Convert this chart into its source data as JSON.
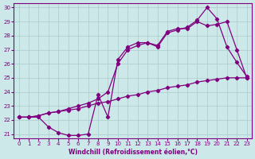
{
  "xlabel": "Windchill (Refroidissement éolien,°C)",
  "bg_color": "#cce8e8",
  "line_color": "#800080",
  "grid_color": "#aacccc",
  "xlim": [
    -0.5,
    23.5
  ],
  "ylim": [
    20.7,
    30.3
  ],
  "xticks": [
    0,
    1,
    2,
    3,
    4,
    5,
    6,
    7,
    8,
    9,
    10,
    11,
    12,
    13,
    14,
    15,
    16,
    17,
    18,
    19,
    20,
    21,
    22,
    23
  ],
  "yticks": [
    21,
    22,
    23,
    24,
    25,
    26,
    27,
    28,
    29,
    30
  ],
  "line1_x": [
    0,
    1,
    2,
    3,
    4,
    5,
    6,
    7,
    8,
    9,
    10,
    11,
    12,
    13,
    14,
    15,
    16,
    17,
    18,
    19,
    20,
    21,
    22,
    23
  ],
  "line1_y": [
    22.2,
    22.2,
    22.3,
    22.5,
    22.6,
    22.7,
    22.8,
    23.0,
    23.2,
    23.3,
    23.5,
    23.7,
    23.8,
    24.0,
    24.1,
    24.3,
    24.4,
    24.5,
    24.7,
    24.8,
    24.9,
    25.0,
    25.0,
    25.0
  ],
  "line2_x": [
    0,
    1,
    2,
    3,
    4,
    5,
    6,
    7,
    8,
    9,
    10,
    11,
    12,
    13,
    14,
    15,
    16,
    17,
    18,
    19,
    20,
    21,
    22,
    23
  ],
  "line2_y": [
    22.2,
    22.2,
    22.2,
    21.5,
    21.1,
    20.9,
    20.9,
    21.0,
    23.8,
    22.2,
    26.3,
    27.2,
    27.5,
    27.5,
    27.3,
    28.3,
    28.5,
    28.5,
    29.0,
    28.7,
    28.8,
    29.0,
    27.0,
    25.0
  ],
  "line3_x": [
    0,
    1,
    2,
    3,
    4,
    5,
    6,
    7,
    8,
    9,
    10,
    11,
    12,
    13,
    14,
    15,
    16,
    17,
    18,
    19,
    20,
    21,
    22,
    23
  ],
  "line3_y": [
    22.2,
    22.2,
    22.3,
    22.5,
    22.6,
    22.8,
    23.0,
    23.2,
    23.5,
    24.0,
    26.0,
    27.0,
    27.3,
    27.5,
    27.2,
    28.2,
    28.4,
    28.6,
    29.1,
    30.0,
    29.2,
    27.2,
    26.1,
    25.1
  ]
}
